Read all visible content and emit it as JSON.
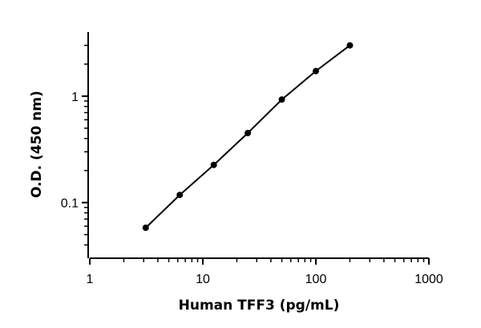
{
  "chart_data": {
    "type": "scatter",
    "title": "",
    "xlabel": "Human TFF3 (pg/mL)",
    "ylabel": "O.D. (450 nm)",
    "x_scale": "log",
    "y_scale": "log",
    "xlim": [
      1,
      1000
    ],
    "ylim": [
      0.03,
      4
    ],
    "x_ticks": [
      1,
      10,
      100,
      1000
    ],
    "x_tick_labels": [
      "1",
      "10",
      "100",
      "1000"
    ],
    "y_ticks": [
      0.1,
      1
    ],
    "y_tick_labels": [
      "0.1",
      "1"
    ],
    "grid": false,
    "legend": "none",
    "series": [
      {
        "x": [
          3.125,
          6.25,
          12.5,
          25,
          50,
          100,
          200
        ],
        "y": [
          0.058,
          0.118,
          0.226,
          0.45,
          0.93,
          1.72,
          3.0
        ],
        "marker": "circle",
        "fit_line": true
      }
    ],
    "colors": {
      "series": "#000000",
      "axis": "#000000"
    }
  }
}
